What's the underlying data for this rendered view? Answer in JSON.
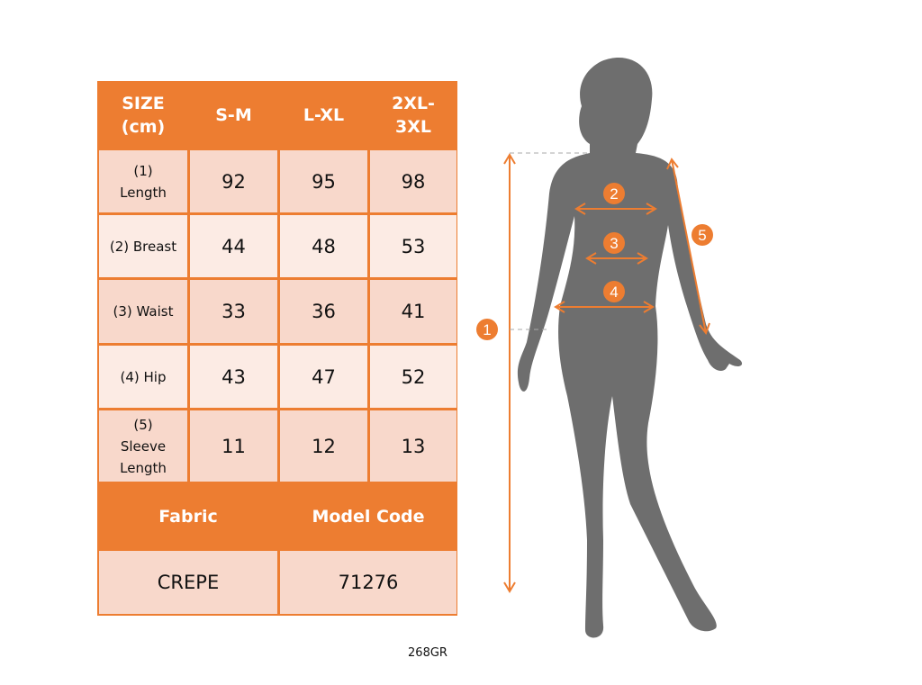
{
  "table": {
    "header": [
      "SIZE\n(cm)",
      "S-M",
      "L-XL",
      "2XL-\n3XL"
    ],
    "rows": [
      {
        "label": "(1)\nLength",
        "values": [
          "92",
          "95",
          "98"
        ]
      },
      {
        "label": "(2) Breast",
        "values": [
          "44",
          "48",
          "53"
        ]
      },
      {
        "label": "(3) Waist",
        "values": [
          "33",
          "36",
          "41"
        ]
      },
      {
        "label": "(4) Hip",
        "values": [
          "43",
          "47",
          "52"
        ]
      },
      {
        "label": "(5)\nSleeve\nLength",
        "values": [
          "11",
          "12",
          "13"
        ]
      }
    ],
    "footer_header": [
      "Fabric",
      "Model Code"
    ],
    "footer_values": [
      "CREPE",
      "71276"
    ]
  },
  "figure": {
    "markers": [
      "1",
      "2",
      "3",
      "4",
      "5"
    ]
  },
  "caption": "268GR",
  "colors": {
    "accent": "#ED7D31",
    "cell_dark": "#F8D8CB",
    "cell_light": "#FCEBE4",
    "silhouette": "#6E6E6E"
  }
}
